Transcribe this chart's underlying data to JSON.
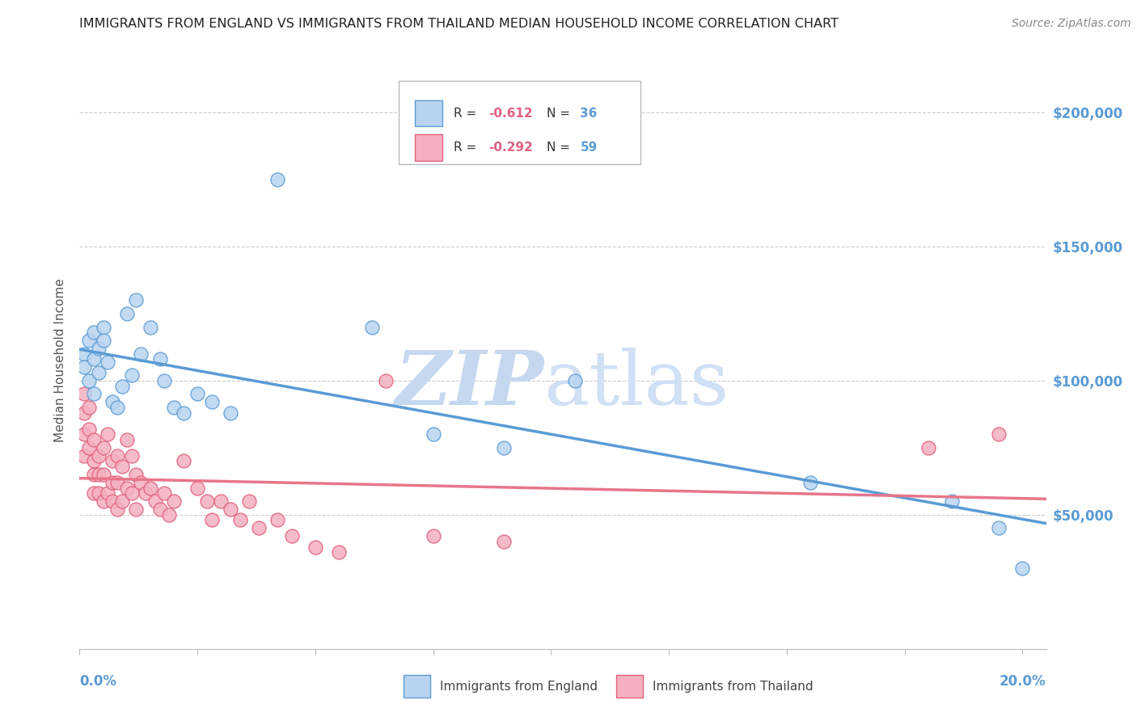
{
  "title": "IMMIGRANTS FROM ENGLAND VS IMMIGRANTS FROM THAILAND MEDIAN HOUSEHOLD INCOME CORRELATION CHART",
  "source": "Source: ZipAtlas.com",
  "ylabel": "Median Household Income",
  "legend_england": "Immigrants from England",
  "legend_thailand": "Immigrants from Thailand",
  "england_R": "-0.612",
  "england_N": "36",
  "thailand_R": "-0.292",
  "thailand_N": "59",
  "color_england_fill": "#b8d4f0",
  "color_england_edge": "#5b9bd5",
  "color_thailand_fill": "#f4b0c0",
  "color_thailand_edge": "#e0607a",
  "color_line_england": "#5b9bd5",
  "color_line_thailand": "#e8758a",
  "watermark_zip_color": "#c5d8f0",
  "watermark_atlas_color": "#d0e0f5",
  "ytick_color": "#5b9bd5",
  "xtick_color": "#5b9bd5",
  "yticks": [
    0,
    50000,
    100000,
    150000,
    200000
  ],
  "ytick_labels": [
    "",
    "$50,000",
    "$100,000",
    "$150,000",
    "$200,000"
  ],
  "ylim": [
    0,
    215000
  ],
  "xlim": [
    0.0,
    0.205
  ],
  "england_x": [
    0.001,
    0.001,
    0.002,
    0.002,
    0.003,
    0.003,
    0.003,
    0.004,
    0.004,
    0.005,
    0.005,
    0.006,
    0.007,
    0.008,
    0.009,
    0.01,
    0.011,
    0.012,
    0.013,
    0.015,
    0.017,
    0.018,
    0.02,
    0.022,
    0.025,
    0.028,
    0.032,
    0.042,
    0.062,
    0.075,
    0.09,
    0.105,
    0.155,
    0.185,
    0.195,
    0.2
  ],
  "england_y": [
    110000,
    105000,
    115000,
    100000,
    118000,
    108000,
    95000,
    112000,
    103000,
    120000,
    115000,
    107000,
    92000,
    90000,
    98000,
    125000,
    102000,
    130000,
    110000,
    120000,
    108000,
    100000,
    90000,
    88000,
    95000,
    92000,
    88000,
    175000,
    120000,
    80000,
    75000,
    100000,
    62000,
    55000,
    45000,
    30000
  ],
  "thailand_x": [
    0.001,
    0.001,
    0.001,
    0.001,
    0.002,
    0.002,
    0.002,
    0.003,
    0.003,
    0.003,
    0.003,
    0.004,
    0.004,
    0.004,
    0.005,
    0.005,
    0.005,
    0.006,
    0.006,
    0.007,
    0.007,
    0.007,
    0.008,
    0.008,
    0.008,
    0.009,
    0.009,
    0.01,
    0.01,
    0.011,
    0.011,
    0.012,
    0.012,
    0.013,
    0.014,
    0.015,
    0.016,
    0.017,
    0.018,
    0.019,
    0.02,
    0.022,
    0.025,
    0.027,
    0.028,
    0.03,
    0.032,
    0.034,
    0.036,
    0.038,
    0.042,
    0.045,
    0.05,
    0.055,
    0.065,
    0.075,
    0.09,
    0.18,
    0.195
  ],
  "thailand_y": [
    95000,
    88000,
    80000,
    72000,
    90000,
    82000,
    75000,
    78000,
    70000,
    65000,
    58000,
    72000,
    65000,
    58000,
    75000,
    65000,
    55000,
    80000,
    58000,
    70000,
    62000,
    55000,
    72000,
    62000,
    52000,
    68000,
    55000,
    78000,
    60000,
    72000,
    58000,
    65000,
    52000,
    62000,
    58000,
    60000,
    55000,
    52000,
    58000,
    50000,
    55000,
    70000,
    60000,
    55000,
    48000,
    55000,
    52000,
    48000,
    55000,
    45000,
    48000,
    42000,
    38000,
    36000,
    100000,
    42000,
    40000,
    75000,
    80000
  ]
}
